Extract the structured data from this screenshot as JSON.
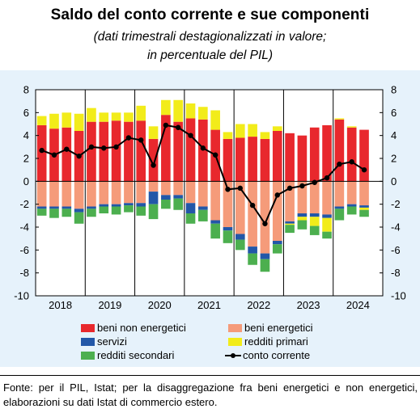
{
  "title": "Saldo del conto corrente e sue componenti",
  "subtitle_line1": "(dati trimestrali destagionalizzati in valore;",
  "subtitle_line2": "in percentuale del PIL)",
  "source": "Fonte: per il PIL, Istat; per la disaggregazione fra beni energetici e non energetici, elaborazioni su dati Istat di commercio estero.",
  "chart_data": {
    "type": "bar",
    "stacked": true,
    "ylim": [
      -10,
      8
    ],
    "yticks": [
      -10,
      -8,
      -6,
      -4,
      -2,
      0,
      2,
      4,
      6,
      8
    ],
    "years": [
      "2018",
      "2019",
      "2020",
      "2021",
      "2022",
      "2023",
      "2024"
    ],
    "quarters_per_year": 4,
    "grid": false,
    "series": [
      {
        "name": "beni non energetici",
        "color": "#e8282d",
        "values": [
          4.9,
          4.6,
          4.7,
          4.4,
          5.2,
          5.2,
          5.3,
          5.2,
          5.3,
          3.7,
          5.8,
          5.2,
          5.5,
          5.4,
          4.5,
          3.7,
          3.8,
          3.9,
          3.7,
          4.4,
          4.2,
          4.0,
          4.7,
          4.9,
          5.4,
          4.7,
          4.5
        ]
      },
      {
        "name": "beni energetici",
        "color": "#f59b7a",
        "values": [
          -2.2,
          -2.2,
          -2.2,
          -2.4,
          -2.2,
          -2.0,
          -2.0,
          -1.9,
          -1.9,
          -0.9,
          -1.2,
          -1.2,
          -1.9,
          -2.2,
          -3.4,
          -4.0,
          -4.6,
          -5.7,
          -6.3,
          -5.2,
          -3.5,
          -2.8,
          -2.8,
          -2.9,
          -2.2,
          -2.0,
          -2.1
        ]
      },
      {
        "name": "servizi",
        "color": "#2257a8",
        "values": [
          -0.2,
          -0.2,
          -0.2,
          -0.3,
          -0.2,
          -0.2,
          -0.2,
          -0.2,
          -0.3,
          -1.1,
          -0.4,
          -0.3,
          -0.9,
          -0.3,
          -0.3,
          -0.3,
          -0.5,
          -0.6,
          -0.5,
          -0.3,
          -0.2,
          -0.3,
          -0.3,
          -0.3,
          -0.2,
          -0.2,
          -0.2
        ]
      },
      {
        "name": "redditi primari",
        "color": "#f2ec1a",
        "values": [
          0.8,
          1.3,
          1.3,
          1.5,
          1.2,
          0.8,
          0.7,
          0.8,
          1.3,
          1.1,
          1.3,
          1.9,
          1.3,
          1.1,
          1.7,
          0.6,
          1.2,
          1.1,
          0.6,
          0.4,
          -0.1,
          -0.3,
          -0.8,
          -1.2,
          0.1,
          0.1,
          -0.2
        ]
      },
      {
        "name": "redditi secondari",
        "color": "#4caf4f",
        "values": [
          -0.6,
          -0.8,
          -0.7,
          -1.0,
          -0.7,
          -0.6,
          -0.7,
          -0.6,
          -0.8,
          -1.3,
          -0.8,
          -1.0,
          -0.9,
          -1.0,
          -1.3,
          -1.1,
          -0.9,
          -1.0,
          -1.1,
          -0.8,
          -0.7,
          -0.8,
          -0.8,
          -0.6,
          -1.0,
          -0.7,
          -0.6
        ]
      }
    ],
    "line": {
      "name": "conto corrente",
      "color": "#000000",
      "values": [
        2.7,
        2.3,
        2.8,
        2.2,
        3.0,
        2.9,
        3.0,
        3.8,
        3.6,
        1.4,
        4.9,
        4.7,
        4.0,
        2.9,
        2.3,
        -0.7,
        -0.6,
        -2.1,
        -3.7,
        -1.2,
        -0.6,
        -0.4,
        -0.1,
        0.3,
        1.5,
        1.7,
        1.0
      ]
    }
  }
}
